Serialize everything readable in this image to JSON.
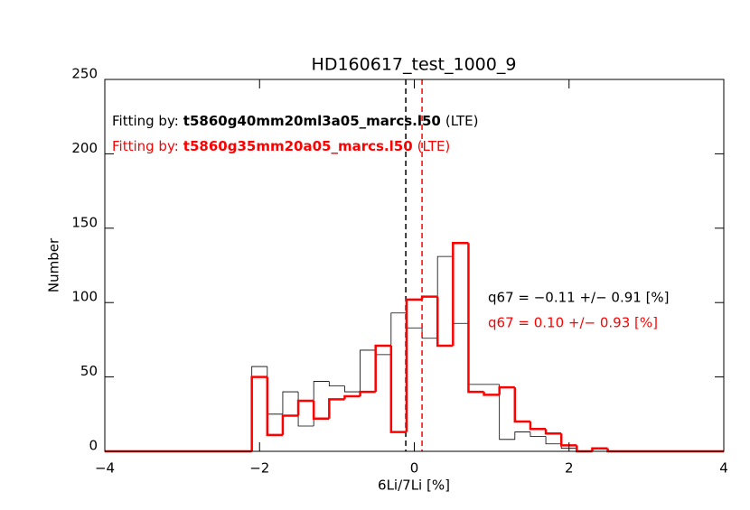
{
  "chart_data": {
    "type": "histogram",
    "title": "HD160617_test_1000_9",
    "xlabel": "6Li/7Li [%]",
    "ylabel": "Number",
    "bins": [
      -4,
      -2.1,
      -1.9,
      -1.7,
      -1.5,
      -1.3,
      -1.1,
      -0.9,
      -0.7,
      -0.5,
      -0.3,
      -0.1,
      0.1,
      0.3,
      0.5,
      0.7,
      0.9,
      1.1,
      1.3,
      1.5,
      1.7,
      1.9,
      2.1,
      2.3,
      2.5,
      4
    ],
    "fit_prefix": "Fitting by:",
    "fit_suffix": "(LTE)",
    "series": [
      {
        "name": "t5860g40mm20ml3a05_marcs.l50",
        "color": "#000000",
        "line_width": 0.8,
        "values": [
          0,
          57,
          25,
          40,
          17,
          47,
          44,
          40,
          68,
          65,
          93,
          83,
          76,
          131,
          86,
          45,
          45,
          8,
          13,
          10,
          5,
          2,
          0,
          0,
          0
        ],
        "median": -0.11,
        "stat_label": "q67 =  −0.11 +/−   0.91 [%]"
      },
      {
        "name": "t5860g35mm20a05_marcs.l50",
        "color": "#ff0000",
        "line_width": 2.5,
        "values": [
          0,
          50,
          11,
          24,
          34,
          22,
          35,
          37,
          40,
          71,
          13,
          102,
          104,
          71,
          140,
          40,
          38,
          43,
          20,
          15,
          12,
          4,
          0,
          2,
          0
        ],
        "median": 0.1,
        "stat_label": "q67 =  0.10 +/−   0.93 [%]"
      }
    ],
    "xlim": [
      -4,
      4
    ],
    "ylim": [
      0,
      250
    ],
    "xticks": [
      {
        "value": -4,
        "label": "−4"
      },
      {
        "value": -2,
        "label": "−2"
      },
      0,
      2,
      4
    ],
    "yticks": [
      0,
      50,
      100,
      150,
      200,
      250
    ]
  }
}
